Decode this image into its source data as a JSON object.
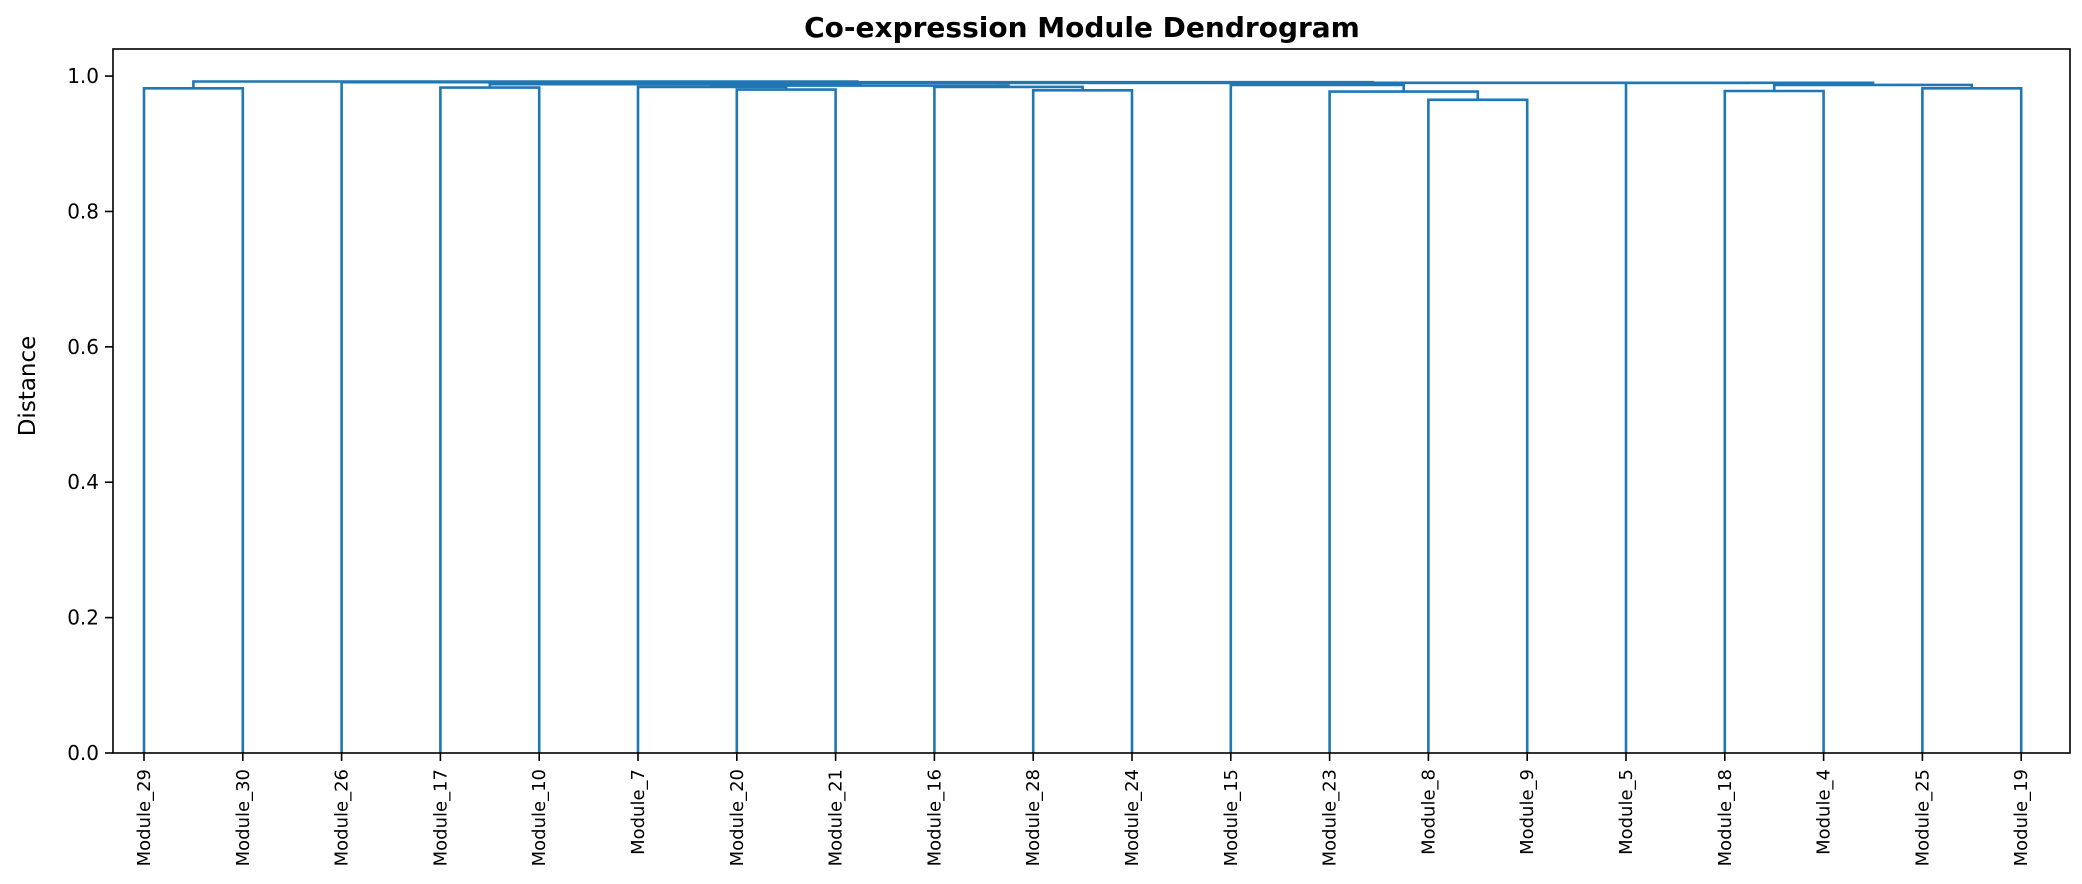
{
  "chart_data": {
    "type": "dendrogram",
    "title": "Co-expression Module Dendrogram",
    "xlabel": "",
    "ylabel": "Distance",
    "ylim": [
      0,
      1.04
    ],
    "yticks": [
      0.0,
      0.2,
      0.4,
      0.6,
      0.8,
      1.0
    ],
    "ytick_labels": [
      "0.0",
      "0.2",
      "0.4",
      "0.6",
      "0.8",
      "1.0"
    ],
    "leaves": [
      "Module_29",
      "Module_30",
      "Module_26",
      "Module_17",
      "Module_10",
      "Module_7",
      "Module_20",
      "Module_21",
      "Module_16",
      "Module_28",
      "Module_24",
      "Module_15",
      "Module_23",
      "Module_8",
      "Module_9",
      "Module_5",
      "Module_18",
      "Module_4",
      "Module_25",
      "Module_19"
    ],
    "link_color": "#1f77b4",
    "merges": [
      {
        "id": "m1",
        "left": "Module_8",
        "right": "Module_9",
        "height": 0.965
      },
      {
        "id": "m2",
        "left": "Module_23",
        "right": "m1",
        "height": 0.977
      },
      {
        "id": "m3",
        "left": "Module_18",
        "right": "Module_4",
        "height": 0.978
      },
      {
        "id": "m4",
        "left": "Module_28",
        "right": "Module_24",
        "height": 0.979
      },
      {
        "id": "m5",
        "left": "Module_20",
        "right": "Module_21",
        "height": 0.98
      },
      {
        "id": "m6",
        "left": "Module_25",
        "right": "Module_19",
        "height": 0.982
      },
      {
        "id": "m7",
        "left": "Module_29",
        "right": "Module_30",
        "height": 0.982
      },
      {
        "id": "m8",
        "left": "Module_17",
        "right": "Module_10",
        "height": 0.983
      },
      {
        "id": "m9",
        "left": "Module_7",
        "right": "m5",
        "height": 0.984
      },
      {
        "id": "m10",
        "left": "Module_16",
        "right": "m4",
        "height": 0.984
      },
      {
        "id": "m11",
        "left": "m9",
        "right": "m10",
        "height": 0.986
      },
      {
        "id": "m12",
        "left": "m3",
        "right": "m6",
        "height": 0.987
      },
      {
        "id": "m13",
        "left": "Module_15",
        "right": "m2",
        "height": 0.987
      },
      {
        "id": "m14",
        "left": "m8",
        "right": "m11",
        "height": 0.988
      },
      {
        "id": "m15",
        "left": "Module_5",
        "right": "m12",
        "height": 0.99
      },
      {
        "id": "m16",
        "left": "m14",
        "right": "m13",
        "height": 0.99
      },
      {
        "id": "m17",
        "left": "m16",
        "right": "m15",
        "height": 0.99
      },
      {
        "id": "m18",
        "left": "Module_26",
        "right": "m17",
        "height": 0.991
      },
      {
        "id": "m19",
        "left": "m7",
        "right": "m18",
        "height": 0.992
      }
    ]
  }
}
